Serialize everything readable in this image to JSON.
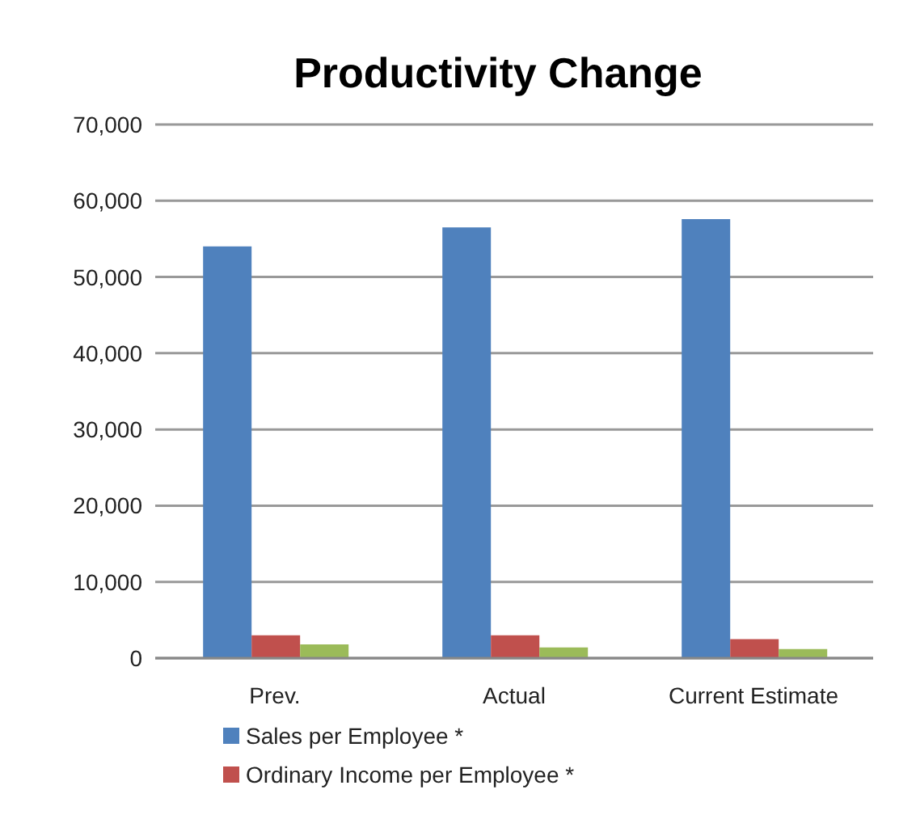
{
  "chart_data": {
    "type": "bar",
    "title": "Productivity Change",
    "categories": [
      "Prev.",
      "Actual",
      "Current Estimate"
    ],
    "series": [
      {
        "name": "Sales per Employee *",
        "color": "#4f81bd",
        "values": [
          54000,
          56500,
          57600
        ]
      },
      {
        "name": "Ordinary Income per Employee *",
        "color": "#c0504d",
        "values": [
          3000,
          3000,
          2500
        ]
      },
      {
        "color": "#9bbb59",
        "values": [
          1800,
          1400,
          1200
        ]
      }
    ],
    "ylim": [
      0,
      70000
    ],
    "yticks": [
      0,
      {
        "value": 10000,
        "label": "10,000"
      },
      {
        "value": 20000,
        "label": "20,000"
      },
      {
        "value": 30000,
        "label": "30,000"
      },
      {
        "value": 40000,
        "label": "40,000"
      },
      {
        "value": 50000,
        "label": "50,000"
      },
      {
        "value": 60000,
        "label": "60,000"
      },
      {
        "value": 70000,
        "label": "70,000"
      }
    ],
    "grid": "y",
    "legend": "bottom"
  }
}
